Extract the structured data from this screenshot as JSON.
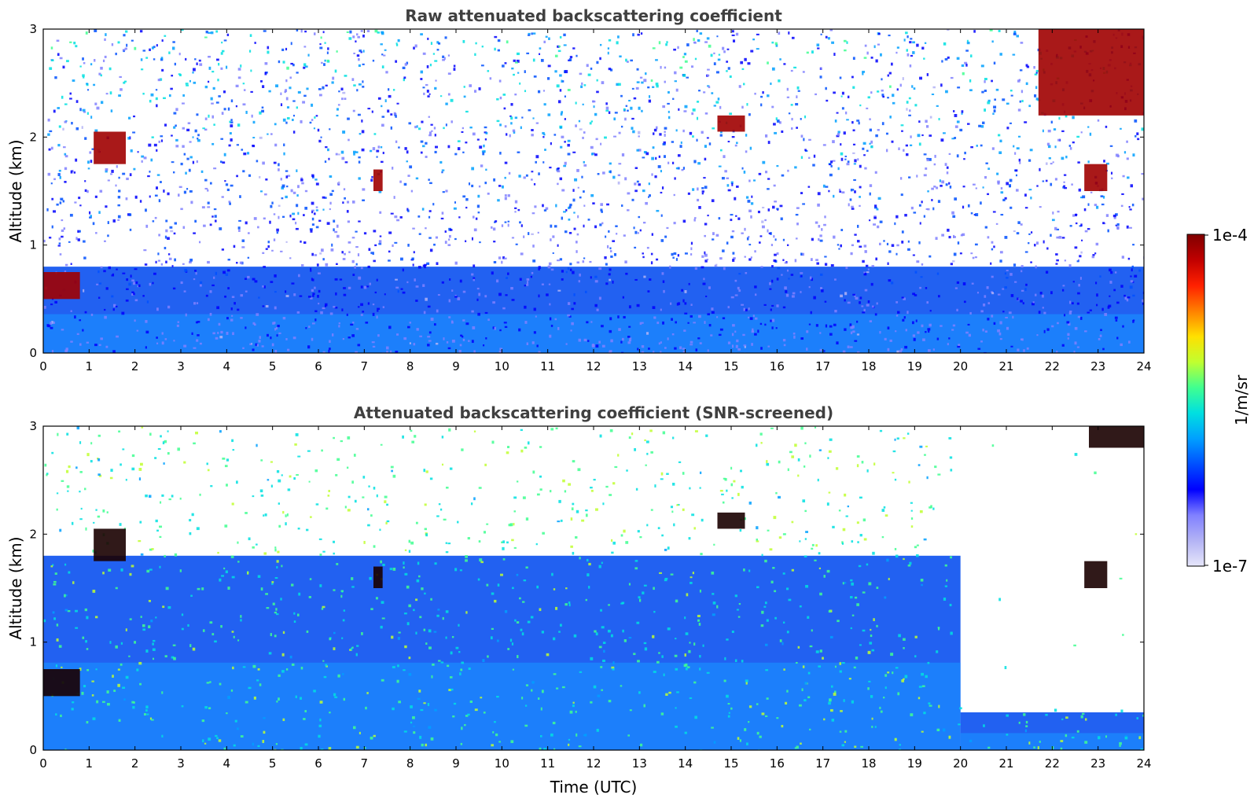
{
  "chart_data": [
    {
      "type": "heatmap",
      "title": "Raw attenuated backscattering coefficient",
      "xlabel": "",
      "ylabel": "Altitude (km)",
      "xlim": [
        0,
        24
      ],
      "ylim": [
        0,
        3
      ],
      "xticks": [
        "0",
        "1",
        "2",
        "3",
        "4",
        "5",
        "6",
        "7",
        "8",
        "9",
        "10",
        "11",
        "12",
        "13",
        "14",
        "15",
        "16",
        "17",
        "18",
        "19",
        "20",
        "21",
        "22",
        "23",
        "24"
      ],
      "yticks": [
        "0",
        "1",
        "2",
        "3"
      ],
      "scale": "log",
      "features": [
        {
          "kind": "cloud",
          "x": [
            0.0,
            0.8
          ],
          "y": [
            0.5,
            0.75
          ]
        },
        {
          "kind": "cloud",
          "x": [
            1.1,
            1.8
          ],
          "y": [
            1.75,
            2.05
          ]
        },
        {
          "kind": "cloud",
          "x": [
            7.2,
            7.4
          ],
          "y": [
            1.5,
            1.7
          ]
        },
        {
          "kind": "cloud",
          "x": [
            14.7,
            15.3
          ],
          "y": [
            2.05,
            2.2
          ]
        },
        {
          "kind": "cloud",
          "x": [
            22.7,
            23.2
          ],
          "y": [
            1.5,
            1.75
          ]
        },
        {
          "kind": "cloud",
          "x": [
            21.7,
            24.0
          ],
          "y": [
            2.2,
            3.0
          ]
        },
        {
          "kind": "boundary-layer",
          "x": [
            0,
            24
          ],
          "y": [
            0,
            0.8
          ]
        }
      ]
    },
    {
      "type": "heatmap",
      "title": "Attenuated backscattering coefficient (SNR-screened)",
      "xlabel": "Time (UTC)",
      "ylabel": "Altitude (km)",
      "xlim": [
        0,
        24
      ],
      "ylim": [
        0,
        3
      ],
      "xticks": [
        "0",
        "1",
        "2",
        "3",
        "4",
        "5",
        "6",
        "7",
        "8",
        "9",
        "10",
        "11",
        "12",
        "13",
        "14",
        "15",
        "16",
        "17",
        "18",
        "19",
        "20",
        "21",
        "22",
        "23",
        "24"
      ],
      "yticks": [
        "0",
        "1",
        "2",
        "3"
      ],
      "scale": "log",
      "features": [
        {
          "kind": "cloud",
          "x": [
            0.0,
            0.8
          ],
          "y": [
            0.5,
            0.75
          ]
        },
        {
          "kind": "cloud",
          "x": [
            1.1,
            1.8
          ],
          "y": [
            1.75,
            2.05
          ]
        },
        {
          "kind": "cloud",
          "x": [
            7.2,
            7.4
          ],
          "y": [
            1.5,
            1.7
          ]
        },
        {
          "kind": "cloud",
          "x": [
            14.7,
            15.3
          ],
          "y": [
            2.05,
            2.2
          ]
        },
        {
          "kind": "cloud",
          "x": [
            22.7,
            23.2
          ],
          "y": [
            1.5,
            1.75
          ]
        },
        {
          "kind": "cloud",
          "x": [
            22.8,
            24.0
          ],
          "y": [
            2.8,
            3.0
          ]
        },
        {
          "kind": "boundary-layer",
          "x": [
            0,
            20
          ],
          "y": [
            0,
            1.8
          ]
        },
        {
          "kind": "boundary-layer",
          "x": [
            20,
            24
          ],
          "y": [
            0,
            0.35
          ]
        }
      ]
    }
  ],
  "colorbar": {
    "label": "1/m/sr",
    "min_label": "1e-7",
    "max_label": "1e-4",
    "colors": [
      "#e6e6fa",
      "#b3b3f5",
      "#8080ff",
      "#0000ff",
      "#0050ff",
      "#00a0ff",
      "#00e0e0",
      "#40ff90",
      "#c0ff30",
      "#ffe000",
      "#ff8000",
      "#ff2000",
      "#c00000",
      "#800000"
    ]
  }
}
